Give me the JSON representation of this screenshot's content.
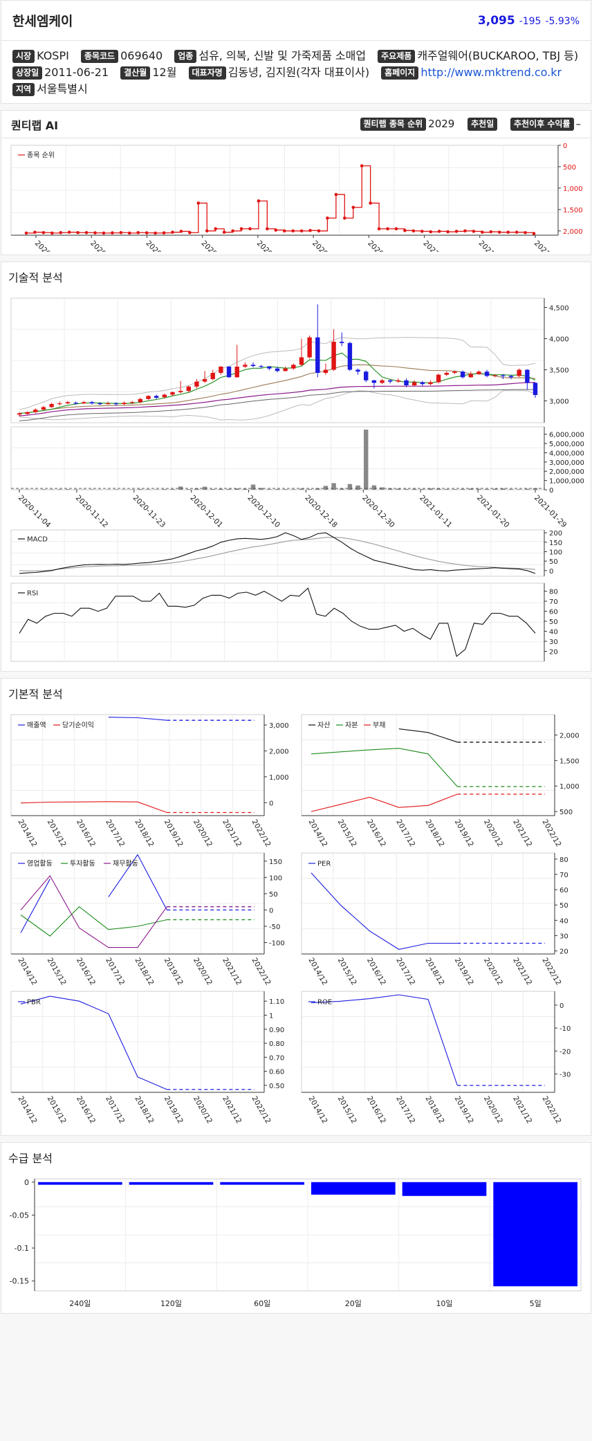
{
  "header": {
    "name": "한세엠케이",
    "price": "3,095",
    "change": "-195",
    "change_pct": "-5.93%"
  },
  "info": {
    "market_label": "시장",
    "market": "KOSPI",
    "code_label": "종목코드",
    "code": "069640",
    "industry_label": "업종",
    "industry": "섬유, 의복, 신발 및 가죽제품 소매업",
    "products_label": "주요제품",
    "products": "캐주얼웨어(BUCKAROO, TBJ 등)",
    "listed_label": "상장일",
    "listed": "2011-06-21",
    "fiscal_label": "결산월",
    "fiscal": "12월",
    "ceo_label": "대표자명",
    "ceo": "김동녕, 김지원(각자 대표이사)",
    "homepage_label": "홈페이지",
    "homepage": "http://www.mktrend.co.kr",
    "region_label": "지역",
    "region": "서울특별시"
  },
  "quantilab": {
    "title": "퀀티랩 AI",
    "rank_label": "퀀티랩 종목 순위",
    "rank": "2029",
    "rec_date_label": "추천일",
    "rec_return_label": "추천이후 수익률",
    "rec_return": "–"
  },
  "sections": {
    "technical": "기술적 분석",
    "fundamental": "기본적 분석",
    "supply": "수급 분석"
  },
  "dates": [
    "2020-11-04",
    "2020-11-12",
    "2020-11-23",
    "2020-12-01",
    "2020-12-10",
    "2020-12-18",
    "2020-12-30",
    "2021-01-11",
    "2021-01-20",
    "2021-01-29"
  ],
  "years": [
    "2014/12",
    "2015/12",
    "2016/12",
    "2017/12",
    "2018/12",
    "2019/12",
    "2020/12",
    "2021/12",
    "2022/12"
  ],
  "chart_data": [
    {
      "type": "line",
      "id": "rank",
      "series": [
        {
          "name": "종목 순위",
          "values": [
            2050,
            2030,
            2040,
            2050,
            2040,
            2030,
            2040,
            2040,
            2045,
            2050,
            2045,
            2040,
            2050,
            2040,
            2045,
            2050,
            2045,
            2030,
            2010,
            2040,
            1350,
            2000,
            1950,
            2030,
            2000,
            1950,
            1950,
            1300,
            1950,
            1980,
            2000,
            2000,
            2000,
            1990,
            2000,
            1700,
            1150,
            1700,
            1450,
            480,
            1350,
            1950,
            1950,
            1950,
            1990,
            2000,
            2010,
            2020,
            2010,
            2020,
            2010,
            2000,
            2010,
            2030,
            2020,
            2030,
            2030,
            2030,
            2040,
            2060
          ]
        }
      ],
      "y_ticks": [
        "0",
        "500",
        "1,000",
        "1,500",
        "2,000"
      ],
      "ylim": [
        0,
        2100
      ],
      "inverted": true
    },
    {
      "type": "candlestick",
      "id": "price",
      "candles": [
        [
          2780,
          2800,
          2750,
          2820
        ],
        [
          2790,
          2820,
          2780,
          2830
        ],
        [
          2820,
          2860,
          2800,
          2880
        ],
        [
          2860,
          2900,
          2850,
          2920
        ],
        [
          2900,
          2950,
          2890,
          2970
        ],
        [
          2950,
          2960,
          2930,
          2990
        ],
        [
          2960,
          2980,
          2950,
          3000
        ],
        [
          2970,
          2960,
          2940,
          2990
        ],
        [
          2960,
          2980,
          2950,
          3000
        ],
        [
          2980,
          2960,
          2940,
          3000
        ],
        [
          2960,
          2950,
          2930,
          2980
        ],
        [
          2950,
          2960,
          2940,
          2990
        ],
        [
          2960,
          2950,
          2920,
          2980
        ],
        [
          2950,
          2970,
          2930,
          2990
        ],
        [
          2970,
          2980,
          2950,
          3000
        ],
        [
          2980,
          3030,
          2960,
          3050
        ],
        [
          3030,
          3080,
          3020,
          3090
        ],
        [
          3080,
          3050,
          3030,
          3100
        ],
        [
          3060,
          3100,
          3040,
          3120
        ],
        [
          3100,
          3140,
          3080,
          3150
        ],
        [
          3140,
          3160,
          3120,
          3320
        ],
        [
          3160,
          3230,
          3140,
          3250
        ],
        [
          3230,
          3310,
          3200,
          3350
        ],
        [
          3310,
          3350,
          3290,
          3480
        ],
        [
          3350,
          3450,
          3330,
          3500
        ],
        [
          3450,
          3550,
          3420,
          3560
        ],
        [
          3550,
          3380,
          3370,
          3560
        ],
        [
          3380,
          3550,
          3370,
          3900
        ],
        [
          3550,
          3580,
          3530,
          3620
        ],
        [
          3580,
          3560,
          3540,
          3620
        ],
        [
          3560,
          3550,
          3530,
          3580
        ],
        [
          3550,
          3520,
          3490,
          3560
        ],
        [
          3520,
          3480,
          3460,
          3550
        ],
        [
          3480,
          3520,
          3470,
          3550
        ],
        [
          3520,
          3580,
          3500,
          3600
        ],
        [
          3580,
          3700,
          3560,
          4000
        ],
        [
          3700,
          4020,
          3680,
          4050
        ],
        [
          4020,
          3450,
          3380,
          4550
        ],
        [
          3450,
          3500,
          3420,
          3600
        ],
        [
          3500,
          3950,
          3480,
          4150
        ],
        [
          3950,
          3930,
          3880,
          4100
        ],
        [
          3930,
          3500,
          3480,
          3950
        ],
        [
          3500,
          3470,
          3420,
          3520
        ],
        [
          3470,
          3330,
          3300,
          3490
        ],
        [
          3330,
          3290,
          3200,
          3340
        ],
        [
          3290,
          3330,
          3270,
          3350
        ],
        [
          3330,
          3310,
          3280,
          3350
        ],
        [
          3310,
          3330,
          3290,
          3360
        ],
        [
          3330,
          3250,
          3220,
          3360
        ],
        [
          3250,
          3300,
          3230,
          3330
        ],
        [
          3300,
          3270,
          3240,
          3320
        ],
        [
          3270,
          3300,
          3250,
          3330
        ],
        [
          3300,
          3420,
          3280,
          3440
        ],
        [
          3420,
          3450,
          3400,
          3470
        ],
        [
          3450,
          3470,
          3430,
          3490
        ],
        [
          3470,
          3380,
          3360,
          3490
        ],
        [
          3380,
          3430,
          3370,
          3470
        ],
        [
          3430,
          3470,
          3420,
          3490
        ],
        [
          3470,
          3400,
          3380,
          3500
        ],
        [
          3400,
          3410,
          3380,
          3430
        ],
        [
          3410,
          3400,
          3350,
          3430
        ],
        [
          3400,
          3380,
          3350,
          3420
        ],
        [
          3400,
          3500,
          3380,
          3520
        ],
        [
          3500,
          3290,
          3180,
          3510
        ],
        [
          3290,
          3095,
          3050,
          3300
        ]
      ],
      "y_ticks": [
        "3,000",
        "3,500",
        "4,000",
        "4,500"
      ],
      "ylim": [
        2650,
        4650
      ]
    },
    {
      "type": "bar",
      "id": "volume",
      "values": [
        40,
        40,
        30,
        60,
        50,
        60,
        70,
        50,
        40,
        50,
        30,
        40,
        50,
        40,
        50,
        80,
        60,
        50,
        80,
        80,
        350,
        70,
        120,
        330,
        80,
        100,
        90,
        140,
        100,
        560,
        200,
        70,
        80,
        70,
        60,
        120,
        80,
        160,
        420,
        720,
        130,
        620,
        460,
        6500,
        480,
        260,
        140,
        110,
        90,
        100,
        80,
        150,
        120,
        80,
        70,
        90,
        130,
        100,
        80,
        110,
        140,
        70,
        60,
        100,
        180
      ],
      "y_ticks": [
        "0",
        "1,000,000",
        "2,000,000",
        "3,000,000",
        "4,000,000",
        "5,000,000",
        "6,000,000"
      ],
      "ylim": [
        0,
        6800000
      ],
      "unit_scale": 1000
    },
    {
      "type": "line",
      "id": "macd",
      "series": [
        {
          "name": "MACD",
          "values": [
            -15,
            -12,
            -10,
            -5,
            0,
            10,
            18,
            25,
            30,
            32,
            33,
            32,
            34,
            33,
            36,
            40,
            42,
            48,
            55,
            62,
            75,
            90,
            105,
            115,
            130,
            150,
            160,
            168,
            170,
            168,
            165,
            170,
            180,
            200,
            185,
            165,
            175,
            195,
            200,
            175,
            150,
            120,
            95,
            75,
            55,
            45,
            35,
            25,
            15,
            5,
            2,
            5,
            0,
            -2,
            2,
            5,
            8,
            10,
            12,
            15,
            12,
            10,
            8,
            0,
            -15
          ]
        }
      ],
      "signal": [
        0,
        -2,
        -2,
        0,
        3,
        8,
        12,
        16,
        20,
        22,
        24,
        25,
        26,
        27,
        28,
        29,
        31,
        34,
        37,
        41,
        47,
        54,
        62,
        70,
        79,
        89,
        99,
        108,
        117,
        125,
        131,
        138,
        146,
        154,
        160,
        163,
        165,
        170,
        175,
        176,
        174,
        168,
        160,
        150,
        140,
        128,
        116,
        104,
        91,
        79,
        68,
        58,
        49,
        41,
        35,
        29,
        25,
        21,
        19,
        17,
        15,
        13,
        12,
        10,
        6
      ],
      "y_ticks": [
        "0",
        "50",
        "100",
        "150",
        "200"
      ],
      "ylim": [
        -30,
        215
      ]
    },
    {
      "type": "line",
      "id": "rsi",
      "series": [
        {
          "name": "RSI",
          "values": [
            38,
            52,
            48,
            55,
            58,
            58,
            55,
            63,
            63,
            60,
            63,
            75,
            75,
            75,
            70,
            70,
            78,
            65,
            65,
            64,
            66,
            73,
            76,
            76,
            73,
            78,
            79,
            76,
            80,
            75,
            70,
            76,
            75,
            83,
            57,
            55,
            63,
            58,
            50,
            45,
            42,
            42,
            44,
            46,
            40,
            43,
            37,
            32,
            48,
            48,
            15,
            22,
            48,
            47,
            58,
            58,
            55,
            55,
            48,
            38
          ]
        }
      ],
      "y_ticks": [
        "20",
        "30",
        "40",
        "50",
        "60",
        "70",
        "80"
      ],
      "ylim": [
        10,
        88
      ]
    },
    {
      "type": "line",
      "id": "sales",
      "series": [
        {
          "name": "매출액",
          "values": [
            null,
            null,
            null,
            3300,
            3280,
            3180,
            3180,
            3180,
            3180
          ]
        },
        {
          "name": "당기순이익",
          "values": [
            -10,
            20,
            30,
            40,
            30,
            -380,
            -380,
            -380,
            -380
          ]
        }
      ],
      "y_ticks": [
        "0",
        "1,000",
        "2,000",
        "3,000"
      ],
      "ylim": [
        -500,
        3400
      ]
    },
    {
      "type": "line",
      "id": "balance",
      "series": [
        {
          "name": "자산",
          "values": [
            null,
            null,
            null,
            2120,
            2050,
            1860,
            1860,
            1860,
            1860
          ]
        },
        {
          "name": "자본",
          "values": [
            1630,
            1670,
            1710,
            1740,
            1630,
            990,
            990,
            990,
            990
          ]
        },
        {
          "name": "부채",
          "values": [
            500,
            640,
            780,
            580,
            620,
            840,
            840,
            840,
            840
          ]
        }
      ],
      "y_ticks": [
        "500",
        "1,000",
        "1,500",
        "2,000"
      ],
      "ylim": [
        420,
        2400
      ]
    },
    {
      "type": "line",
      "id": "cashflow",
      "series": [
        {
          "name": "영업활동",
          "values": [
            -70,
            95,
            null,
            40,
            170,
            0,
            0,
            0,
            0
          ]
        },
        {
          "name": "투자활동",
          "values": [
            -15,
            -80,
            10,
            -60,
            -50,
            -30,
            -30,
            -30,
            -30
          ]
        },
        {
          "name": "재무활동",
          "values": [
            0,
            105,
            -55,
            -115,
            -115,
            10,
            10,
            10,
            10
          ]
        }
      ],
      "y_ticks": [
        "-100",
        "-50",
        "0",
        "50",
        "100",
        "150"
      ],
      "ylim": [
        -135,
        175
      ]
    },
    {
      "type": "line",
      "id": "per",
      "series": [
        {
          "name": "PER",
          "values": [
            71,
            50,
            33,
            21,
            25,
            25,
            25,
            25,
            25
          ]
        }
      ],
      "y_ticks": [
        "20",
        "30",
        "40",
        "50",
        "60",
        "70",
        "80"
      ],
      "ylim": [
        18,
        84
      ]
    },
    {
      "type": "line",
      "id": "pbr",
      "series": [
        {
          "name": "PBR",
          "values": [
            1.08,
            1.135,
            1.1,
            1.01,
            0.56,
            0.47,
            0.47,
            0.47,
            0.47
          ]
        }
      ],
      "y_ticks": [
        "0.50",
        "0.60",
        "0.70",
        "0.80",
        "0.90",
        "1",
        "1.10"
      ],
      "ylim": [
        0.45,
        1.17
      ]
    },
    {
      "type": "line",
      "id": "roe",
      "series": [
        {
          "name": "ROE",
          "values": [
            1,
            1.7,
            2.8,
            4.5,
            2.5,
            -35,
            -35,
            -35,
            -35
          ]
        }
      ],
      "y_ticks": [
        "-30",
        "-20",
        "-10",
        "0"
      ],
      "ylim": [
        -38,
        6
      ]
    },
    {
      "type": "bar",
      "id": "supply",
      "categories": [
        "240일",
        "120일",
        "60일",
        "20일",
        "10일",
        "5일"
      ],
      "values": [
        -0.004,
        -0.004,
        -0.004,
        -0.019,
        -0.021,
        -0.158
      ],
      "y_ticks": [
        "0",
        "-0.05",
        "-0.1",
        "-0.15"
      ],
      "ylim": [
        -0.165,
        0.005
      ]
    }
  ],
  "colors": {
    "up": "#e01414",
    "down": "#1a1ae0",
    "rank": "#e01414"
  }
}
